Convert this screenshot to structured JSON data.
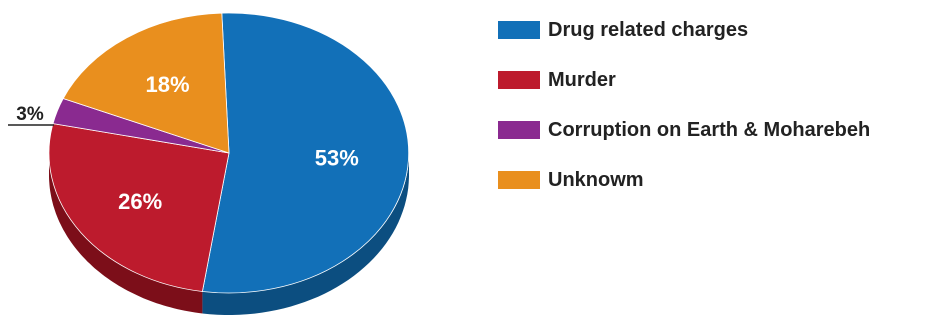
{
  "chart_data": {
    "type": "pie",
    "title": "",
    "slices": [
      {
        "label": "Drug related charges",
        "value": 53,
        "value_label": "53%",
        "color": "#1270b8",
        "side_color": "#0c4e80"
      },
      {
        "label": "Murder",
        "value": 26,
        "value_label": "26%",
        "color": "#bd1b2d",
        "side_color": "#7c0e19"
      },
      {
        "label": "Corruption on Earth & Moharebeh",
        "value": 3,
        "value_label": "3%",
        "color": "#8a2a90",
        "side_color": "#5a1a5e"
      },
      {
        "label": "Unknowm",
        "value": 18,
        "value_label": "18%",
        "color": "#e98f1e",
        "side_color": "#a9620f"
      }
    ],
    "legend_position": "right",
    "style": "3d"
  }
}
